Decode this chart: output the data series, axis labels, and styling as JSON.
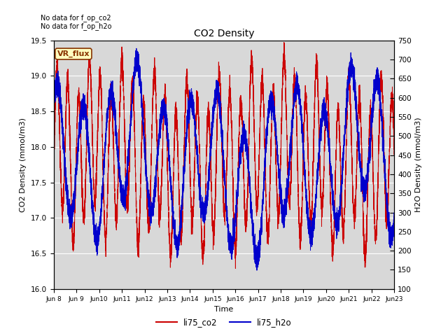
{
  "title": "CO2 Density",
  "xlabel": "Time",
  "ylabel_left": "CO2 Density (mmol/m3)",
  "ylabel_right": "H2O Density (mmol/m3)",
  "annotation_text1": "No data for f_op_co2",
  "annotation_text2": "No data for f_op_h2o",
  "legend_label1": "li75_co2",
  "legend_label2": "li75_h2o",
  "vr_flux_label": "VR_flux",
  "xlim_days": [
    8,
    23
  ],
  "ylim_left": [
    16.0,
    19.5
  ],
  "ylim_right": [
    100,
    750
  ],
  "fig_bg_color": "#ffffff",
  "plot_bg_color": "#d8d8d8",
  "line_color_co2": "#cc0000",
  "line_color_h2o": "#0000cc",
  "grid_color": "#ffffff",
  "vr_box_facecolor": "#ffffc0",
  "vr_box_edgecolor": "#883300",
  "vr_text_color": "#883300",
  "xtick_labels": [
    "Jun 8",
    "Jun 9",
    "Jun 10",
    "Jun 11",
    "Jun 12",
    "Jun 13",
    "Jun 14",
    "Jun 15",
    "Jun 16",
    "Jun 17",
    "Jun 18",
    "Jun 19",
    "Jun 20",
    "Jun 21",
    "Jun 22",
    "Jun 23"
  ],
  "xtick_positions": [
    8,
    9,
    10,
    11,
    12,
    13,
    14,
    15,
    16,
    17,
    18,
    19,
    20,
    21,
    22,
    23
  ],
  "yticks_left": [
    16.0,
    16.5,
    17.0,
    17.5,
    18.0,
    18.5,
    19.0,
    19.5
  ],
  "yticks_right": [
    100,
    150,
    200,
    250,
    300,
    350,
    400,
    450,
    500,
    550,
    600,
    650,
    700,
    750
  ]
}
